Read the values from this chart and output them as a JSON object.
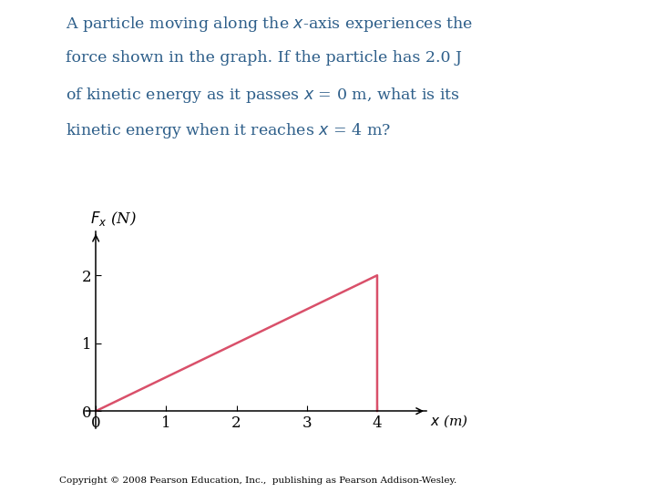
{
  "text_lines": [
    "A particle moving along the $x$-axis experiences the",
    "force shown in the graph. If the particle has 2.0 J",
    "of kinetic energy as it passes $x$ = 0 m, what is its",
    "kinetic energy when it reaches $x$ = 4 m?"
  ],
  "text_color": "#2e5f8a",
  "line_x": [
    0,
    4,
    4
  ],
  "line_y": [
    0,
    2,
    0
  ],
  "line_color": "#d9506a",
  "line_width": 1.8,
  "xlim": [
    -0.15,
    4.7
  ],
  "ylim": [
    -0.25,
    2.65
  ],
  "xticks": [
    0,
    1,
    2,
    3,
    4
  ],
  "yticks": [
    0,
    1,
    2
  ],
  "bg_color": "#ffffff",
  "copyright": "Copyright © 2008 Pearson Education, Inc.,  publishing as Pearson Addison-Wesley.",
  "fig_width": 7.2,
  "fig_height": 5.4,
  "dpi": 100
}
